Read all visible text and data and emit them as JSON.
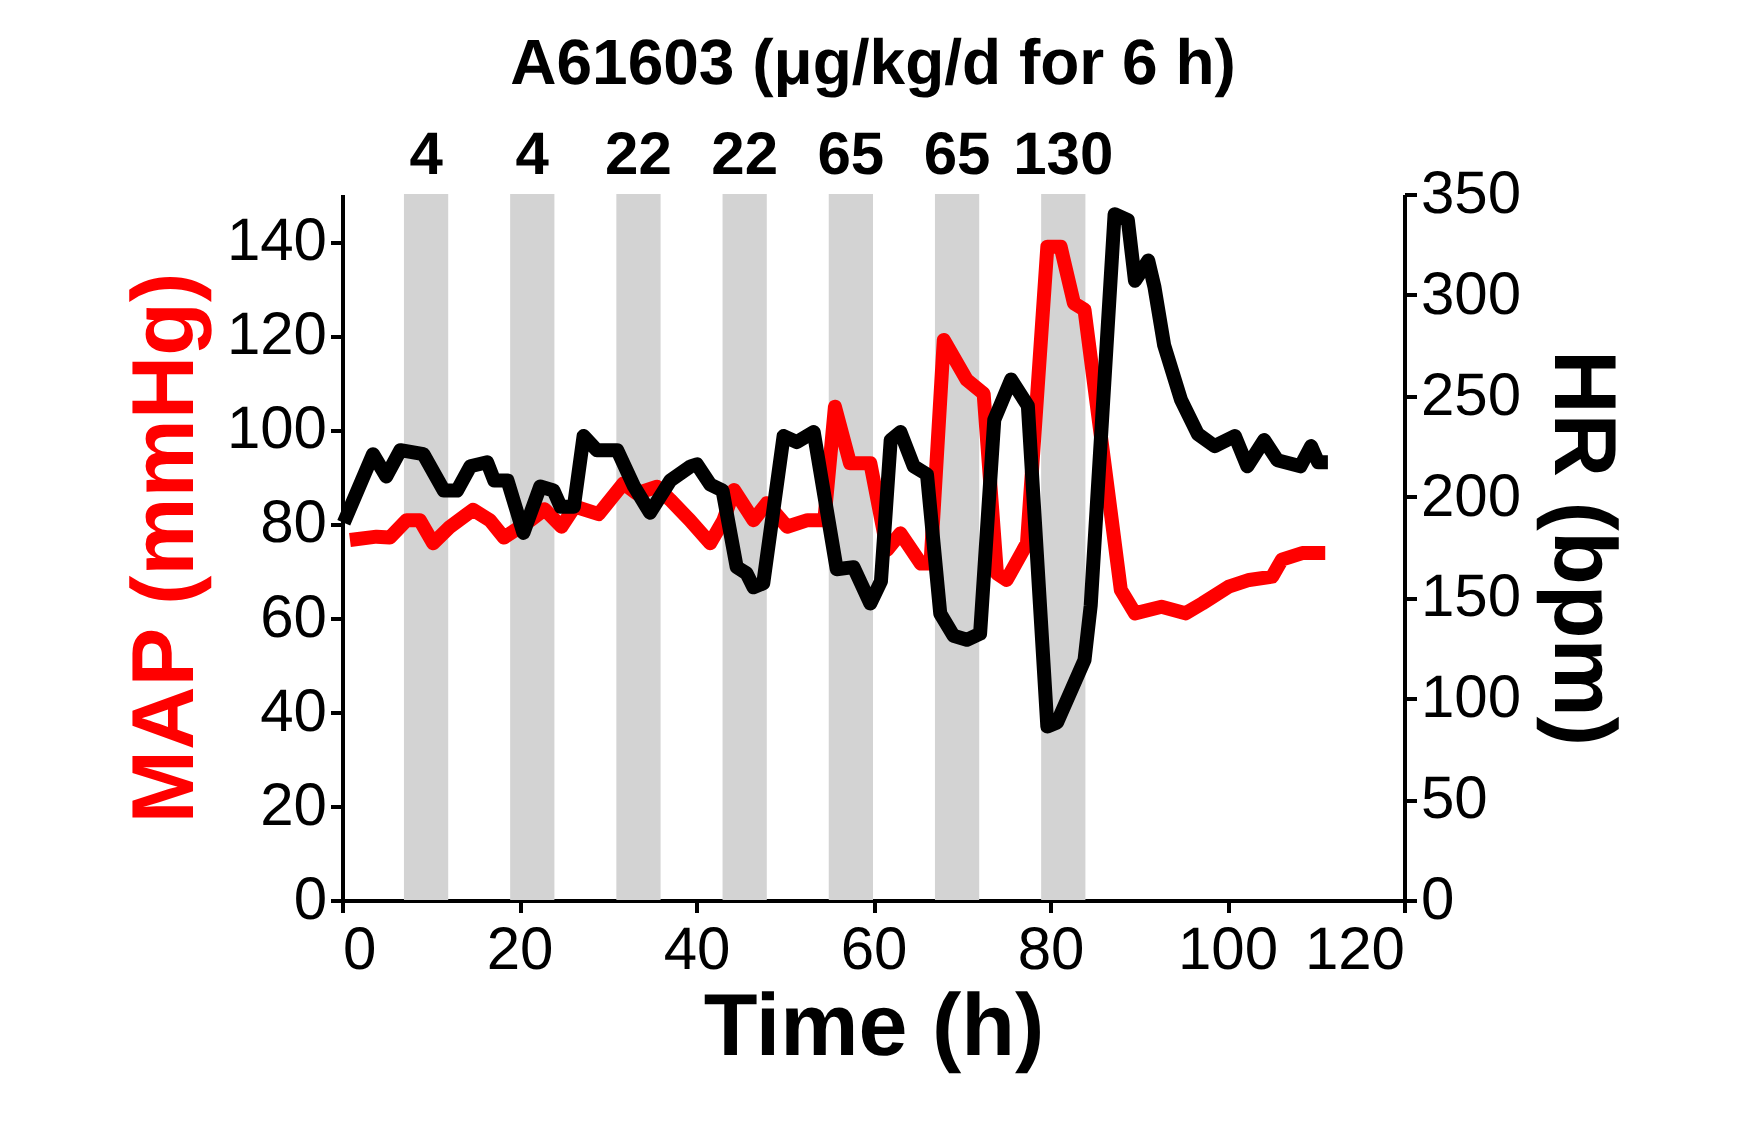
{
  "chart_data": {
    "type": "line",
    "title": "A61603 (μg/kg/d for 6 h)",
    "xlabel": "Time (h)",
    "ylabel": "MAP (mmHg)",
    "y2label": "HR (bpm)",
    "xlim": [
      0,
      120
    ],
    "xticks": [
      0,
      20,
      40,
      60,
      80,
      100,
      120
    ],
    "ylim": [
      0,
      150
    ],
    "yticks": [
      0,
      20,
      40,
      60,
      80,
      100,
      120,
      140
    ],
    "y2lim": [
      0,
      350
    ],
    "y2ticks": [
      0,
      50,
      100,
      150,
      200,
      250,
      300,
      350
    ],
    "grid": false,
    "marker": "none",
    "line_style": "solid",
    "bands": [
      {
        "axis": "x",
        "from": 7,
        "to": 12,
        "label": "4",
        "color": "#d3d3d3"
      },
      {
        "axis": "x",
        "from": 19,
        "to": 24,
        "label": "4",
        "color": "#d3d3d3"
      },
      {
        "axis": "x",
        "from": 31,
        "to": 36,
        "label": "22",
        "color": "#d3d3d3"
      },
      {
        "axis": "x",
        "from": 43,
        "to": 48,
        "label": "22",
        "color": "#d3d3d3"
      },
      {
        "axis": "x",
        "from": 55,
        "to": 60,
        "label": "65",
        "color": "#d3d3d3"
      },
      {
        "axis": "x",
        "from": 67,
        "to": 72,
        "label": "65",
        "color": "#d3d3d3"
      },
      {
        "axis": "x",
        "from": 79,
        "to": 84,
        "label": "130",
        "color": "#d3d3d3"
      }
    ],
    "series": [
      {
        "color": "#000000",
        "axis": "y2",
        "x": [
          0.2,
          3.5,
          5,
          6.6,
          9.2,
          11.5,
          13,
          14.5,
          16.4,
          17.2,
          18.7,
          20.5,
          22.4,
          23.9,
          24.7,
          26.2,
          27.3,
          28.8,
          31.1,
          33,
          34.8,
          37.1,
          39.4,
          40.1,
          41.6,
          43,
          44.6,
          45.7,
          46.5,
          47.6,
          49.9,
          51.4,
          53.3,
          54.1,
          55.9,
          57.8,
          59.7,
          60.9,
          62,
          63.1,
          64.6,
          66.1,
          67.6,
          69.1,
          70.6,
          72.1,
          73.7,
          75.6,
          77.5,
          79.7,
          80.8,
          83.9,
          84.6,
          87.3,
          88.8,
          89.6,
          91.1,
          91.8,
          92.9,
          94.8,
          96.7,
          98.6,
          100.9,
          102.3,
          104.2,
          105.7,
          108.3,
          109.5,
          110.3,
          111.4
        ],
        "values": [
          187,
          221,
          210,
          223,
          221,
          203,
          203,
          215,
          217,
          208,
          208,
          182,
          205,
          203,
          195,
          195,
          230,
          223,
          223,
          205,
          192,
          208,
          215,
          216,
          206,
          203,
          165,
          162,
          155,
          157,
          230,
          227,
          232,
          211,
          164,
          165,
          147,
          158,
          228,
          232,
          215,
          211,
          142,
          131,
          129,
          132,
          238,
          258,
          245,
          86,
          88,
          119,
          146,
          340,
          337,
          307,
          317,
          304,
          275,
          248,
          231,
          225,
          230,
          215,
          228,
          218,
          215,
          225,
          217,
          217
        ]
      },
      {
        "color": "#ff0000",
        "axis": "y",
        "x": [
          0.9,
          3.9,
          5.4,
          7.3,
          8.8,
          10.3,
          12.2,
          14.8,
          16.7,
          18.3,
          21.3,
          22.9,
          24.8,
          26.3,
          29,
          31.8,
          33.3,
          35.6,
          37.1,
          39.3,
          41.6,
          43.1,
          44.3,
          46.5,
          48,
          50.3,
          52.6,
          54.5,
          55.7,
          57.4,
          59.7,
          61.6,
          63.1,
          65.4,
          66.5,
          68,
          70.6,
          72.5,
          74,
          75.1,
          77.4,
          79.7,
          81.2,
          82.7,
          83.9,
          88,
          89.6,
          92.6,
          95.3,
          97.2,
          100.2,
          102.5,
          105.1,
          106.2,
          108.5,
          111.1
        ],
        "values": [
          76.5,
          77.2,
          77,
          80.7,
          80.7,
          75.8,
          79.3,
          82.9,
          80.7,
          77,
          80.7,
          83,
          79.3,
          83.6,
          82,
          88.5,
          86.4,
          87.8,
          85,
          80.7,
          75.8,
          80.7,
          87.1,
          80.7,
          84.3,
          79.3,
          80.7,
          80.7,
          104.8,
          92.8,
          92.8,
          74.4,
          77.9,
          71.5,
          71.5,
          119,
          110.5,
          107.6,
          69.4,
          68,
          75.8,
          138.8,
          138.8,
          126.8,
          125.4,
          65.9,
          60.9,
          62.3,
          60.9,
          63,
          66.6,
          68,
          68.7,
          72.3,
          73.7,
          73.7
        ]
      }
    ]
  }
}
